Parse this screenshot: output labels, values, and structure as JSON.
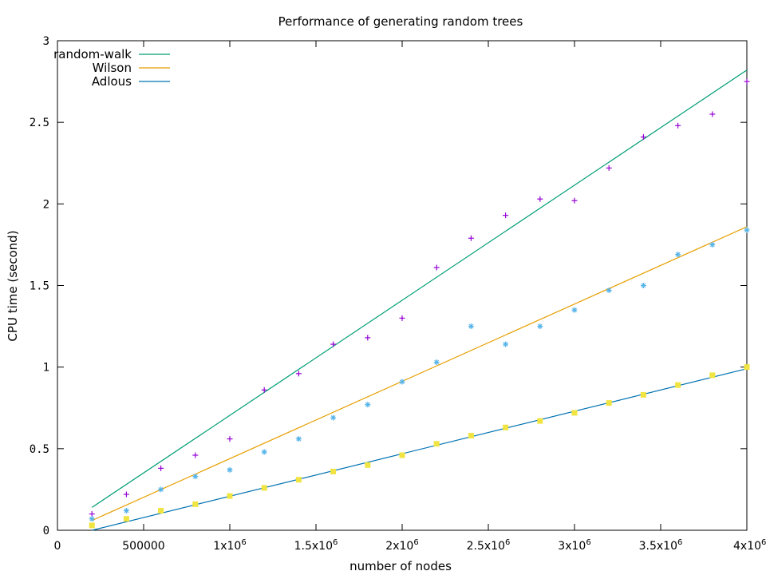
{
  "chart_data": {
    "type": "scatter",
    "title": "Performance of generating random trees",
    "xlabel": "number of nodes",
    "ylabel": "CPU time (second)",
    "xlim": [
      0,
      4000000
    ],
    "ylim": [
      0,
      3
    ],
    "x_ticks": [
      {
        "value": 0,
        "label": "0",
        "exp": ""
      },
      {
        "value": 500000,
        "label": "500000",
        "exp": ""
      },
      {
        "value": 1000000,
        "label": "1x10",
        "exp": "6"
      },
      {
        "value": 1500000,
        "label": "1.5x10",
        "exp": "6"
      },
      {
        "value": 2000000,
        "label": "2x10",
        "exp": "6"
      },
      {
        "value": 2500000,
        "label": "2.5x10",
        "exp": "6"
      },
      {
        "value": 3000000,
        "label": "3x10",
        "exp": "6"
      },
      {
        "value": 3500000,
        "label": "3.5x10",
        "exp": "6"
      },
      {
        "value": 4000000,
        "label": "4x10",
        "exp": "6"
      }
    ],
    "y_ticks": [
      {
        "value": 0,
        "label": "0"
      },
      {
        "value": 0.5,
        "label": "0.5"
      },
      {
        "value": 1,
        "label": "1"
      },
      {
        "value": 1.5,
        "label": "1.5"
      },
      {
        "value": 2,
        "label": "2"
      },
      {
        "value": 2.5,
        "label": "2.5"
      },
      {
        "value": 3,
        "label": "3"
      }
    ],
    "grid": false,
    "legend_position": "top-left",
    "x": [
      200000,
      400000,
      600000,
      800000,
      1000000,
      1200000,
      1400000,
      1600000,
      1800000,
      2000000,
      2200000,
      2400000,
      2600000,
      2800000,
      3000000,
      3200000,
      3400000,
      3600000,
      3800000,
      4000000
    ],
    "series": [
      {
        "name": "random-walk",
        "line_color": "#009e73",
        "point_color": "#9400d3",
        "marker": "plus",
        "values": [
          0.1,
          0.22,
          0.38,
          0.46,
          0.56,
          0.86,
          0.96,
          1.14,
          1.18,
          1.3,
          1.61,
          1.79,
          1.93,
          2.03,
          2.02,
          2.22,
          2.41,
          2.48,
          2.55,
          2.75
        ],
        "fit": [
          [
            200000,
            0.14
          ],
          [
            4000000,
            2.82
          ]
        ]
      },
      {
        "name": "Wilson",
        "line_color": "#e69f00",
        "point_color": "#56b4e9",
        "marker": "asterisk",
        "values": [
          0.07,
          0.12,
          0.25,
          0.33,
          0.37,
          0.48,
          0.56,
          0.69,
          0.77,
          0.91,
          1.03,
          1.25,
          1.14,
          1.25,
          1.35,
          1.47,
          1.5,
          1.69,
          1.75,
          1.84
        ],
        "fit": [
          [
            200000,
            0.06
          ],
          [
            4000000,
            1.86
          ]
        ]
      },
      {
        "name": "Adlous",
        "line_color": "#0072b2",
        "point_color": "#f0e442",
        "marker": "square",
        "values": [
          0.03,
          0.07,
          0.12,
          0.16,
          0.21,
          0.26,
          0.31,
          0.36,
          0.4,
          0.46,
          0.53,
          0.58,
          0.63,
          0.67,
          0.72,
          0.78,
          0.83,
          0.89,
          0.95,
          1.0
        ],
        "fit": [
          [
            200000,
            0.0
          ],
          [
            4000000,
            0.99
          ]
        ]
      }
    ]
  }
}
